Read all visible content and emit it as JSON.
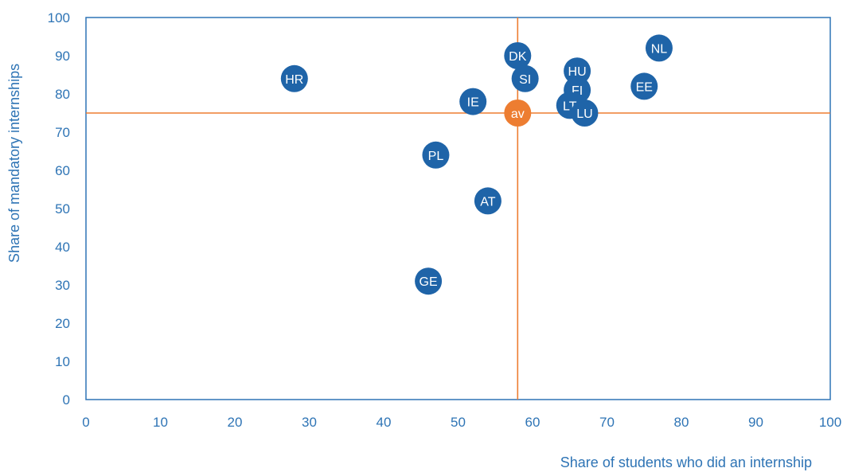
{
  "chart_data": {
    "type": "scatter",
    "xlabel": "Share of students who did an internship",
    "ylabel": "Share of mandatory internships",
    "xlim": [
      0,
      100
    ],
    "ylim": [
      0,
      100
    ],
    "xticks": [
      "0",
      "10",
      "20",
      "30",
      "40",
      "50",
      "60",
      "70",
      "80",
      "90",
      "100"
    ],
    "yticks": [
      "0",
      "10",
      "20",
      "30",
      "40",
      "50",
      "60",
      "70",
      "80",
      "90",
      "100"
    ],
    "reference_lines": {
      "x": 58,
      "y": 75
    },
    "grid": false,
    "colors": {
      "points": "#1F64A8",
      "average": "#ED7D31",
      "reference_lines": "#ED7D31",
      "axis": "#2E74B5"
    },
    "points": [
      {
        "label": "HR",
        "x": 28,
        "y": 84
      },
      {
        "label": "DK",
        "x": 58,
        "y": 90
      },
      {
        "label": "SI",
        "x": 59,
        "y": 84
      },
      {
        "label": "IE",
        "x": 52,
        "y": 78
      },
      {
        "label": "HU",
        "x": 66,
        "y": 86
      },
      {
        "label": "FI",
        "x": 66,
        "y": 81
      },
      {
        "label": "LT",
        "x": 65,
        "y": 77
      },
      {
        "label": "LU",
        "x": 67,
        "y": 75
      },
      {
        "label": "NL",
        "x": 77,
        "y": 92
      },
      {
        "label": "EE",
        "x": 75,
        "y": 82
      },
      {
        "label": "PL",
        "x": 47,
        "y": 64
      },
      {
        "label": "AT",
        "x": 54,
        "y": 52
      },
      {
        "label": "GE",
        "x": 46,
        "y": 31
      }
    ],
    "average_point": {
      "label": "av",
      "x": 58,
      "y": 75
    }
  }
}
